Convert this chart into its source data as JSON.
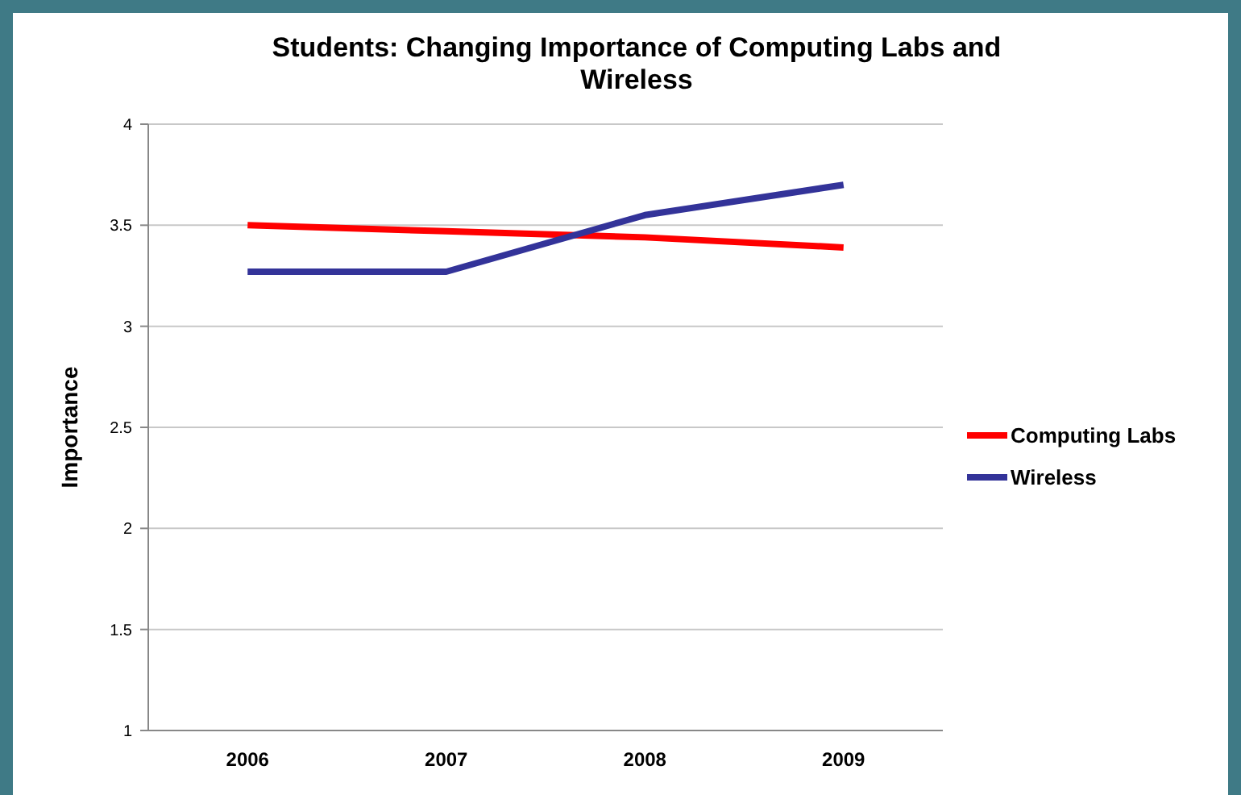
{
  "chart_data": {
    "type": "line",
    "title": "Students: Changing Importance of Computing Labs and Wireless",
    "ylabel": "Importance",
    "categories": [
      "2006",
      "2007",
      "2008",
      "2009"
    ],
    "series": [
      {
        "name": "Computing Labs",
        "color": "#ff0000",
        "values": [
          3.5,
          3.47,
          3.44,
          3.39
        ]
      },
      {
        "name": "Wireless",
        "color": "#333399",
        "values": [
          3.27,
          3.27,
          3.55,
          3.7
        ]
      }
    ],
    "ylim": [
      1,
      4
    ],
    "yticks": [
      1,
      1.5,
      2,
      2.5,
      3,
      3.5,
      4
    ],
    "grid": "y",
    "legend": "right",
    "marker": "none",
    "line_style": "solid"
  }
}
